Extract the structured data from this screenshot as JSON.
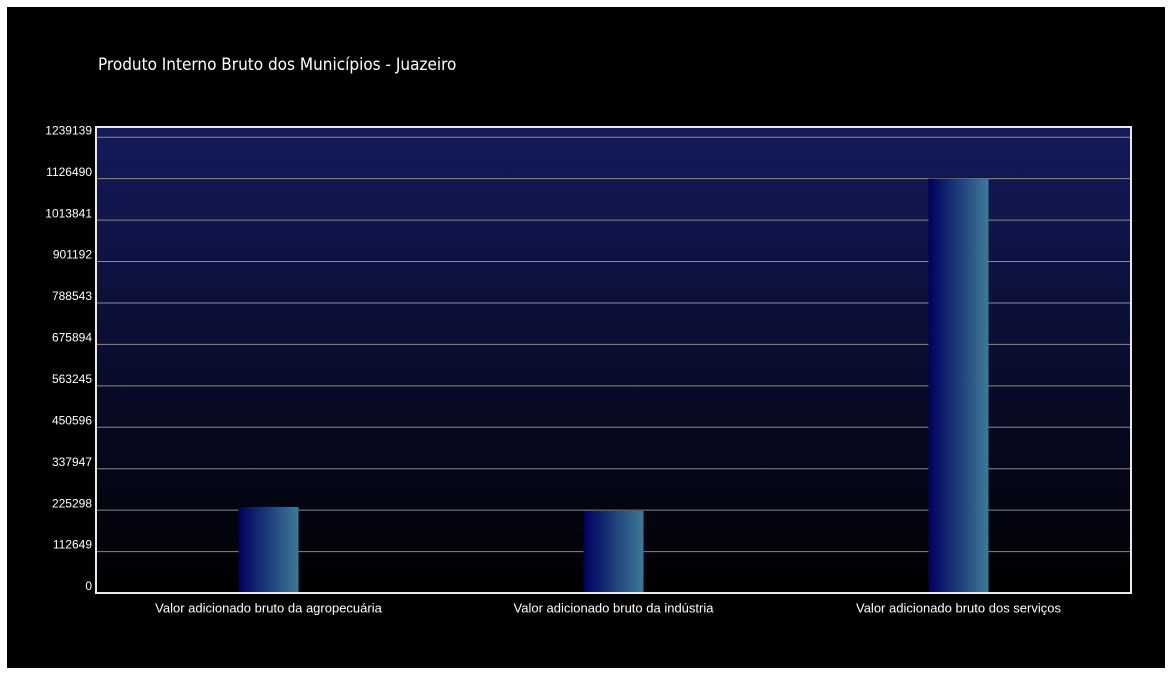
{
  "chart_data": {
    "type": "bar",
    "title": "Produto Interno Bruto dos Municípios - Juazeiro",
    "categories": [
      "Valor adicionado bruto da agropecuária",
      "Valor adicionado bruto da indústria",
      "Valor adicionado bruto dos serviços"
    ],
    "values": [
      234000,
      223000,
      1126490
    ],
    "ylim": [
      0,
      1267000
    ],
    "yticks": [
      0,
      112649,
      225298,
      337947,
      450596,
      563245,
      675894,
      788543,
      901192,
      1013841,
      1126490,
      1239139
    ],
    "grid": true
  }
}
